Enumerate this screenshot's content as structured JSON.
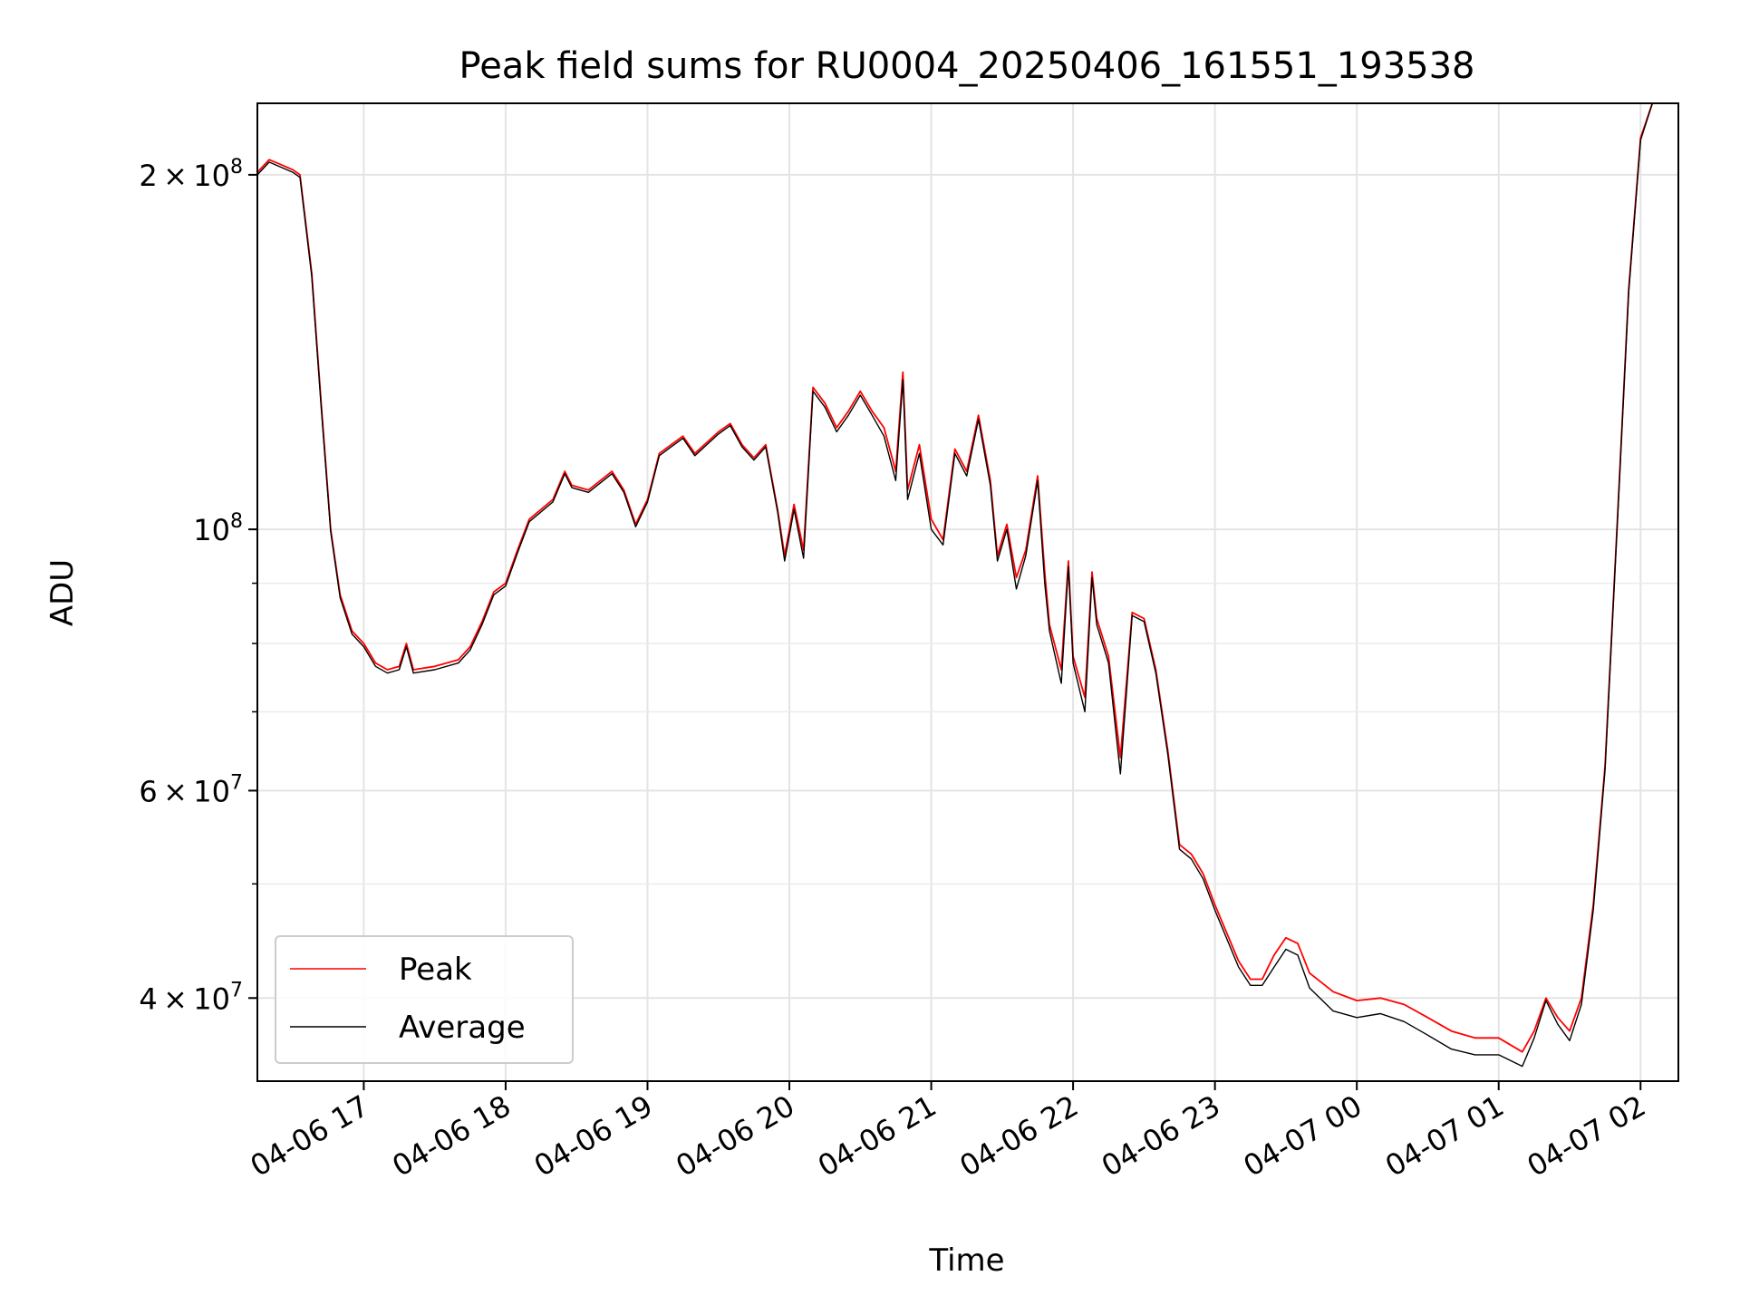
{
  "chart_data": {
    "type": "line",
    "title": "Peak field sums for RU0004_20250406_161551_193538",
    "xlabel": "Time",
    "ylabel": "ADU",
    "yscale": "log",
    "xlim": [
      "2025-04-06 16:15",
      "2025-04-07 02:16"
    ],
    "ylim": [
      34000000,
      230000000
    ],
    "grid": true,
    "legend_position": "lower-left",
    "x_ticks": [
      {
        "t": "2025-04-06 17:00",
        "label": "04-06 17"
      },
      {
        "t": "2025-04-06 18:00",
        "label": "04-06 18"
      },
      {
        "t": "2025-04-06 19:00",
        "label": "04-06 19"
      },
      {
        "t": "2025-04-06 20:00",
        "label": "04-06 20"
      },
      {
        "t": "2025-04-06 21:00",
        "label": "04-06 21"
      },
      {
        "t": "2025-04-06 22:00",
        "label": "04-06 22"
      },
      {
        "t": "2025-04-06 23:00",
        "label": "04-06 23"
      },
      {
        "t": "2025-04-07 00:00",
        "label": "04-07 00"
      },
      {
        "t": "2025-04-07 01:00",
        "label": "04-07 01"
      },
      {
        "t": "2025-04-07 02:00",
        "label": "04-07 02"
      }
    ],
    "y_major_ticks": [
      {
        "value": 40000000,
        "mant": "4",
        "exp": "7"
      },
      {
        "value": 60000000,
        "mant": "6",
        "exp": "7"
      },
      {
        "value": 100000000,
        "mant": "",
        "exp": "8"
      },
      {
        "value": 200000000,
        "mant": "2",
        "exp": "8"
      }
    ],
    "y_minor_ticks": [
      50000000,
      70000000,
      80000000,
      90000000
    ],
    "series": [
      {
        "name": "Peak",
        "color": "#ff0000",
        "points": [
          [
            "2025-04-06 16:15",
            201000000
          ],
          [
            "2025-04-06 16:20",
            206000000
          ],
          [
            "2025-04-06 16:25",
            204000000
          ],
          [
            "2025-04-06 16:30",
            202000000
          ],
          [
            "2025-04-06 16:33",
            200000000
          ],
          [
            "2025-04-06 16:38",
            165000000
          ],
          [
            "2025-04-06 16:42",
            128000000
          ],
          [
            "2025-04-06 16:46",
            100000000
          ],
          [
            "2025-04-06 16:50",
            88000000
          ],
          [
            "2025-04-06 16:55",
            82000000
          ],
          [
            "2025-04-06 17:00",
            80000000
          ],
          [
            "2025-04-06 17:05",
            77000000
          ],
          [
            "2025-04-06 17:10",
            76000000
          ],
          [
            "2025-04-06 17:15",
            76500000
          ],
          [
            "2025-04-06 17:18",
            80000000
          ],
          [
            "2025-04-06 17:21",
            76000000
          ],
          [
            "2025-04-06 17:30",
            76500000
          ],
          [
            "2025-04-06 17:40",
            77500000
          ],
          [
            "2025-04-06 17:45",
            79500000
          ],
          [
            "2025-04-06 17:50",
            83500000
          ],
          [
            "2025-04-06 17:55",
            88500000
          ],
          [
            "2025-04-06 18:00",
            90000000
          ],
          [
            "2025-04-06 18:05",
            96000000
          ],
          [
            "2025-04-06 18:10",
            102000000
          ],
          [
            "2025-04-06 18:20",
            106000000
          ],
          [
            "2025-04-06 18:25",
            112000000
          ],
          [
            "2025-04-06 18:28",
            109000000
          ],
          [
            "2025-04-06 18:35",
            108000000
          ],
          [
            "2025-04-06 18:45",
            112000000
          ],
          [
            "2025-04-06 18:50",
            108000000
          ],
          [
            "2025-04-06 18:55",
            101000000
          ],
          [
            "2025-04-06 19:00",
            106000000
          ],
          [
            "2025-04-06 19:05",
            116000000
          ],
          [
            "2025-04-06 19:10",
            118000000
          ],
          [
            "2025-04-06 19:15",
            120000000
          ],
          [
            "2025-04-06 19:20",
            116000000
          ],
          [
            "2025-04-06 19:30",
            121000000
          ],
          [
            "2025-04-06 19:35",
            123000000
          ],
          [
            "2025-04-06 19:40",
            118000000
          ],
          [
            "2025-04-06 19:45",
            115000000
          ],
          [
            "2025-04-06 19:50",
            118000000
          ],
          [
            "2025-04-06 19:55",
            104000000
          ],
          [
            "2025-04-06 19:58",
            95000000
          ],
          [
            "2025-04-06 20:02",
            105000000
          ],
          [
            "2025-04-06 20:06",
            96000000
          ],
          [
            "2025-04-06 20:10",
            132000000
          ],
          [
            "2025-04-06 20:15",
            128000000
          ],
          [
            "2025-04-06 20:20",
            122000000
          ],
          [
            "2025-04-06 20:25",
            126000000
          ],
          [
            "2025-04-06 20:30",
            131000000
          ],
          [
            "2025-04-06 20:35",
            126000000
          ],
          [
            "2025-04-06 20:40",
            122000000
          ],
          [
            "2025-04-06 20:45",
            112000000
          ],
          [
            "2025-04-06 20:48",
            136000000
          ],
          [
            "2025-04-06 20:50",
            108000000
          ],
          [
            "2025-04-06 20:55",
            118000000
          ],
          [
            "2025-04-06 21:00",
            102000000
          ],
          [
            "2025-04-06 21:05",
            98000000
          ],
          [
            "2025-04-06 21:10",
            117000000
          ],
          [
            "2025-04-06 21:15",
            112000000
          ],
          [
            "2025-04-06 21:20",
            125000000
          ],
          [
            "2025-04-06 21:25",
            110000000
          ],
          [
            "2025-04-06 21:28",
            95000000
          ],
          [
            "2025-04-06 21:32",
            101000000
          ],
          [
            "2025-04-06 21:36",
            91000000
          ],
          [
            "2025-04-06 21:40",
            96000000
          ],
          [
            "2025-04-06 21:45",
            111000000
          ],
          [
            "2025-04-06 21:48",
            92000000
          ],
          [
            "2025-04-06 21:50",
            83000000
          ],
          [
            "2025-04-06 21:55",
            76000000
          ],
          [
            "2025-04-06 21:58",
            94000000
          ],
          [
            "2025-04-06 22:00",
            78000000
          ],
          [
            "2025-04-06 22:05",
            72000000
          ],
          [
            "2025-04-06 22:08",
            92000000
          ],
          [
            "2025-04-06 22:10",
            84000000
          ],
          [
            "2025-04-06 22:15",
            78000000
          ],
          [
            "2025-04-06 22:20",
            64000000
          ],
          [
            "2025-04-06 22:25",
            85000000
          ],
          [
            "2025-04-06 22:30",
            84000000
          ],
          [
            "2025-04-06 22:35",
            76000000
          ],
          [
            "2025-04-06 22:40",
            65000000
          ],
          [
            "2025-04-06 22:45",
            54000000
          ],
          [
            "2025-04-06 22:50",
            53000000
          ],
          [
            "2025-04-06 22:55",
            51000000
          ],
          [
            "2025-04-06 23:00",
            48000000
          ],
          [
            "2025-04-06 23:10",
            43000000
          ],
          [
            "2025-04-06 23:15",
            41500000
          ],
          [
            "2025-04-06 23:20",
            41500000
          ],
          [
            "2025-04-06 23:25",
            43500000
          ],
          [
            "2025-04-06 23:30",
            45000000
          ],
          [
            "2025-04-06 23:35",
            44500000
          ],
          [
            "2025-04-06 23:40",
            42000000
          ],
          [
            "2025-04-06 23:50",
            40500000
          ],
          [
            "2025-04-07 00:00",
            39800000
          ],
          [
            "2025-04-07 00:10",
            40000000
          ],
          [
            "2025-04-07 00:20",
            39500000
          ],
          [
            "2025-04-07 00:30",
            38500000
          ],
          [
            "2025-04-07 00:40",
            37500000
          ],
          [
            "2025-04-07 00:50",
            37000000
          ],
          [
            "2025-04-07 01:00",
            37000000
          ],
          [
            "2025-04-07 01:10",
            36000000
          ],
          [
            "2025-04-07 01:15",
            37500000
          ],
          [
            "2025-04-07 01:20",
            40000000
          ],
          [
            "2025-04-07 01:25",
            38500000
          ],
          [
            "2025-04-07 01:30",
            37500000
          ],
          [
            "2025-04-07 01:35",
            40000000
          ],
          [
            "2025-04-07 01:40",
            48000000
          ],
          [
            "2025-04-07 01:45",
            63000000
          ],
          [
            "2025-04-07 01:50",
            100000000
          ],
          [
            "2025-04-07 01:55",
            160000000
          ],
          [
            "2025-04-07 02:00",
            215000000
          ],
          [
            "2025-04-07 02:05",
            230000000
          ],
          [
            "2025-04-07 02:16",
            230000000
          ]
        ]
      },
      {
        "name": "Average",
        "color": "#000000",
        "points": [
          [
            "2025-04-06 16:15",
            200000000
          ],
          [
            "2025-04-06 16:20",
            205000000
          ],
          [
            "2025-04-06 16:25",
            203000000
          ],
          [
            "2025-04-06 16:30",
            201000000
          ],
          [
            "2025-04-06 16:33",
            199000000
          ],
          [
            "2025-04-06 16:38",
            164000000
          ],
          [
            "2025-04-06 16:42",
            127000000
          ],
          [
            "2025-04-06 16:46",
            99500000
          ],
          [
            "2025-04-06 16:50",
            87500000
          ],
          [
            "2025-04-06 16:55",
            81500000
          ],
          [
            "2025-04-06 17:00",
            79500000
          ],
          [
            "2025-04-06 17:05",
            76500000
          ],
          [
            "2025-04-06 17:10",
            75500000
          ],
          [
            "2025-04-06 17:15",
            76000000
          ],
          [
            "2025-04-06 17:18",
            79500000
          ],
          [
            "2025-04-06 17:21",
            75500000
          ],
          [
            "2025-04-06 17:30",
            76000000
          ],
          [
            "2025-04-06 17:40",
            77000000
          ],
          [
            "2025-04-06 17:45",
            79000000
          ],
          [
            "2025-04-06 17:50",
            83000000
          ],
          [
            "2025-04-06 17:55",
            88000000
          ],
          [
            "2025-04-06 18:00",
            89500000
          ],
          [
            "2025-04-06 18:05",
            95500000
          ],
          [
            "2025-04-06 18:10",
            101500000
          ],
          [
            "2025-04-06 18:20",
            105500000
          ],
          [
            "2025-04-06 18:25",
            111500000
          ],
          [
            "2025-04-06 18:28",
            108500000
          ],
          [
            "2025-04-06 18:35",
            107500000
          ],
          [
            "2025-04-06 18:45",
            111500000
          ],
          [
            "2025-04-06 18:50",
            107500000
          ],
          [
            "2025-04-06 18:55",
            100500000
          ],
          [
            "2025-04-06 19:00",
            105500000
          ],
          [
            "2025-04-06 19:05",
            115500000
          ],
          [
            "2025-04-06 19:10",
            117500000
          ],
          [
            "2025-04-06 19:15",
            119500000
          ],
          [
            "2025-04-06 19:20",
            115500000
          ],
          [
            "2025-04-06 19:30",
            120500000
          ],
          [
            "2025-04-06 19:35",
            122500000
          ],
          [
            "2025-04-06 19:40",
            117500000
          ],
          [
            "2025-04-06 19:45",
            114500000
          ],
          [
            "2025-04-06 19:50",
            117500000
          ],
          [
            "2025-04-06 19:55",
            103500000
          ],
          [
            "2025-04-06 19:58",
            94000000
          ],
          [
            "2025-04-06 20:02",
            104000000
          ],
          [
            "2025-04-06 20:06",
            94500000
          ],
          [
            "2025-04-06 20:10",
            131000000
          ],
          [
            "2025-04-06 20:15",
            127000000
          ],
          [
            "2025-04-06 20:20",
            121000000
          ],
          [
            "2025-04-06 20:25",
            125000000
          ],
          [
            "2025-04-06 20:30",
            130000000
          ],
          [
            "2025-04-06 20:35",
            125000000
          ],
          [
            "2025-04-06 20:40",
            120000000
          ],
          [
            "2025-04-06 20:45",
            110000000
          ],
          [
            "2025-04-06 20:48",
            134000000
          ],
          [
            "2025-04-06 20:50",
            106000000
          ],
          [
            "2025-04-06 20:55",
            116000000
          ],
          [
            "2025-04-06 21:00",
            100000000
          ],
          [
            "2025-04-06 21:05",
            97000000
          ],
          [
            "2025-04-06 21:10",
            116000000
          ],
          [
            "2025-04-06 21:15",
            111000000
          ],
          [
            "2025-04-06 21:20",
            124000000
          ],
          [
            "2025-04-06 21:25",
            109000000
          ],
          [
            "2025-04-06 21:28",
            94000000
          ],
          [
            "2025-04-06 21:32",
            100000000
          ],
          [
            "2025-04-06 21:36",
            89000000
          ],
          [
            "2025-04-06 21:40",
            95000000
          ],
          [
            "2025-04-06 21:45",
            110000000
          ],
          [
            "2025-04-06 21:48",
            90000000
          ],
          [
            "2025-04-06 21:50",
            82000000
          ],
          [
            "2025-04-06 21:55",
            74000000
          ],
          [
            "2025-04-06 21:58",
            93000000
          ],
          [
            "2025-04-06 22:00",
            77000000
          ],
          [
            "2025-04-06 22:05",
            70000000
          ],
          [
            "2025-04-06 22:08",
            91000000
          ],
          [
            "2025-04-06 22:10",
            83000000
          ],
          [
            "2025-04-06 22:15",
            77000000
          ],
          [
            "2025-04-06 22:20",
            62000000
          ],
          [
            "2025-04-06 22:25",
            84500000
          ],
          [
            "2025-04-06 22:30",
            83500000
          ],
          [
            "2025-04-06 22:35",
            75500000
          ],
          [
            "2025-04-06 22:40",
            64500000
          ],
          [
            "2025-04-06 22:45",
            53500000
          ],
          [
            "2025-04-06 22:50",
            52500000
          ],
          [
            "2025-04-06 22:55",
            50500000
          ],
          [
            "2025-04-06 23:00",
            47500000
          ],
          [
            "2025-04-06 23:10",
            42500000
          ],
          [
            "2025-04-06 23:15",
            41000000
          ],
          [
            "2025-04-06 23:20",
            41000000
          ],
          [
            "2025-04-06 23:25",
            42500000
          ],
          [
            "2025-04-06 23:30",
            44000000
          ],
          [
            "2025-04-06 23:35",
            43500000
          ],
          [
            "2025-04-06 23:40",
            40800000
          ],
          [
            "2025-04-06 23:50",
            39000000
          ],
          [
            "2025-04-07 00:00",
            38500000
          ],
          [
            "2025-04-07 00:10",
            38800000
          ],
          [
            "2025-04-07 00:20",
            38200000
          ],
          [
            "2025-04-07 00:30",
            37200000
          ],
          [
            "2025-04-07 00:40",
            36200000
          ],
          [
            "2025-04-07 00:50",
            35800000
          ],
          [
            "2025-04-07 01:00",
            35800000
          ],
          [
            "2025-04-07 01:10",
            35000000
          ],
          [
            "2025-04-07 01:15",
            37000000
          ],
          [
            "2025-04-07 01:20",
            39800000
          ],
          [
            "2025-04-07 01:25",
            38000000
          ],
          [
            "2025-04-07 01:30",
            36800000
          ],
          [
            "2025-04-07 01:35",
            39500000
          ],
          [
            "2025-04-07 01:40",
            47500000
          ],
          [
            "2025-04-07 01:45",
            62500000
          ],
          [
            "2025-04-07 01:50",
            99500000
          ],
          [
            "2025-04-07 01:55",
            159000000
          ],
          [
            "2025-04-07 02:00",
            214000000
          ],
          [
            "2025-04-07 02:05",
            230000000
          ],
          [
            "2025-04-07 02:16",
            230000000
          ]
        ]
      }
    ]
  }
}
